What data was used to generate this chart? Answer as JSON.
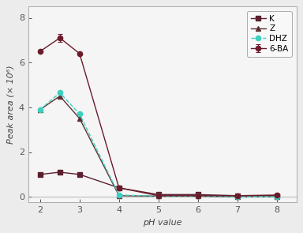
{
  "x": [
    2,
    2.5,
    3,
    4,
    5,
    6,
    7,
    8
  ],
  "series_order": [
    "K",
    "6-BA",
    "Z",
    "DHZ"
  ],
  "series": {
    "K": {
      "y": [
        1.0,
        1.1,
        1.0,
        0.4,
        0.1,
        0.1,
        0.05,
        0.05
      ],
      "color": "#5C1F2E",
      "marker": "s",
      "linestyle": "-",
      "label": "K",
      "markersize": 4.5
    },
    "6-BA": {
      "y": [
        6.5,
        7.1,
        6.4,
        0.4,
        0.05,
        0.05,
        0.05,
        0.08
      ],
      "color": "#6B1A2A",
      "marker": "o",
      "linestyle": "-",
      "label": "6-BA",
      "markersize": 4.5,
      "errorbar_index": 1,
      "errorbar_value": 0.17
    },
    "Z": {
      "y": [
        3.9,
        4.5,
        3.5,
        0.05,
        0.03,
        0.03,
        0.0,
        0.0
      ],
      "color": "#5C3030",
      "marker": "^",
      "linestyle": "-",
      "label": "Z",
      "markersize": 4.5
    },
    "DHZ": {
      "y": [
        3.9,
        4.65,
        3.7,
        0.08,
        0.03,
        0.03,
        0.0,
        0.0
      ],
      "color": "#3DCFC0",
      "marker": "o",
      "linestyle": "--",
      "label": "DHZ",
      "markersize": 4.5
    }
  },
  "xlabel": "pH value",
  "ylabel": "Peak area (× 10⁶)",
  "ylim": [
    -0.25,
    8.5
  ],
  "xlim": [
    1.7,
    8.5
  ],
  "xticks": [
    2,
    3,
    4,
    5,
    6,
    7,
    8
  ],
  "yticks": [
    0,
    2,
    4,
    6,
    8
  ],
  "legend_loc": "upper right",
  "background_color": "#ECECEC",
  "plot_bg_color": "#F5F5F5",
  "linewidth": 1.0,
  "title_fontsize": 9,
  "axis_fontsize": 8,
  "tick_fontsize": 8
}
